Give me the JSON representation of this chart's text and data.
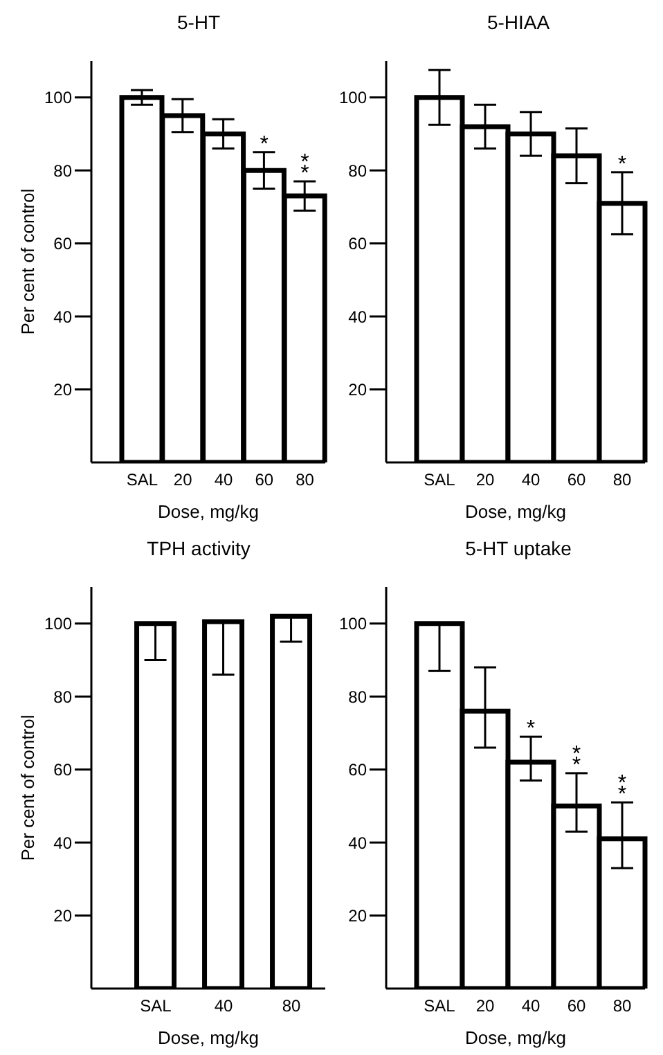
{
  "chart_data": [
    {
      "type": "bar",
      "title": "5-HT",
      "xlabel": "Dose,   mg/kg",
      "ylabel": "Per cent of control",
      "categories": [
        "SAL",
        "20",
        "40",
        "60",
        "80"
      ],
      "values": [
        100,
        95,
        90,
        80,
        73
      ],
      "color": "#ffffff",
      "errors": [
        2,
        4.5,
        4,
        5,
        4
      ],
      "ylim": [
        0,
        110
      ],
      "yticks": [
        20,
        40,
        60,
        80,
        100
      ],
      "annotations": [
        {
          "text": "*",
          "x": "60",
          "y": 80
        },
        {
          "text": "*",
          "x": "80",
          "y": 73
        },
        {
          "text": "*",
          "x": "80",
          "y": 73
        }
      ]
    },
    {
      "type": "bar",
      "title": "5-HIAA",
      "xlabel": "Dose,   mg/kg",
      "categories": [
        "SAL",
        "20",
        "40",
        "60",
        "80"
      ],
      "values": [
        100,
        92,
        90,
        84,
        71
      ],
      "color": "#ffffff",
      "errors": [
        7.5,
        6,
        6,
        7.5,
        8.5
      ],
      "ylim": [
        0,
        110
      ],
      "yticks": [
        20,
        40,
        60,
        80,
        100
      ],
      "annotations": [
        {
          "text": "*",
          "x": "80",
          "y": 71
        }
      ]
    },
    {
      "type": "bar",
      "title": "TPH activity",
      "xlabel": "Dose,   mg/kg",
      "ylabel": "Per cent of control",
      "categories": [
        "SAL",
        "40",
        "80"
      ],
      "values": [
        100,
        100.5,
        102
      ],
      "color": "#ffffff",
      "errors": [
        [
          90,
          100
        ],
        [
          86,
          100.5
        ],
        [
          95,
          102
        ]
      ],
      "ylim": [
        0,
        110
      ],
      "yticks": [
        20,
        40,
        60,
        80,
        100
      ]
    },
    {
      "type": "bar",
      "title": "5-HT uptake",
      "xlabel": "Dose,   mg/kg",
      "categories": [
        "SAL",
        "20",
        "40",
        "60",
        "80"
      ],
      "values": [
        100,
        76,
        62,
        50,
        41
      ],
      "color": "#ffffff",
      "errors": [
        [
          87,
          100
        ],
        [
          66,
          88
        ],
        [
          57,
          69
        ],
        [
          43,
          59
        ],
        [
          33,
          51
        ]
      ],
      "ylim": [
        0,
        110
      ],
      "yticks": [
        20,
        40,
        60,
        80,
        100
      ],
      "annotations": [
        {
          "text": "*",
          "x": "40",
          "y": 62
        },
        {
          "text": "*",
          "x": "60",
          "y": 50
        },
        {
          "text": "*",
          "x": "60",
          "y": 50
        },
        {
          "text": "*",
          "x": "80",
          "y": 41
        },
        {
          "text": "*",
          "x": "80",
          "y": 41
        }
      ]
    }
  ]
}
